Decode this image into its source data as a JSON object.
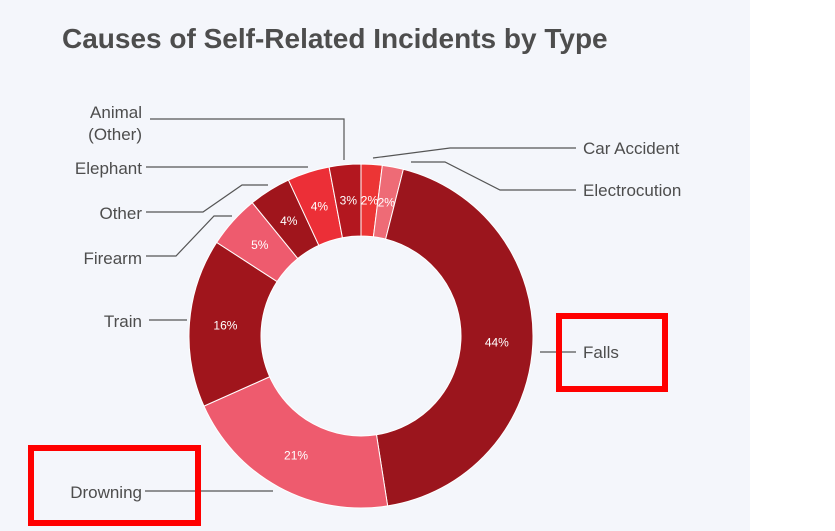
{
  "chart_data": {
    "type": "pie",
    "title": "Causes of Self-Related Incidents by Type",
    "slices": [
      {
        "label": "Car Accident",
        "value": 2,
        "pct_label": "2%",
        "color": "#ec3535"
      },
      {
        "label": "Electrocution",
        "value": 2,
        "pct_label": "2%",
        "color": "#ee6b76"
      },
      {
        "label": "Falls",
        "value": 44,
        "pct_label": "44%",
        "color": "#9b151d"
      },
      {
        "label": "Drowning",
        "value": 21,
        "pct_label": "21%",
        "color": "#ee5b6e"
      },
      {
        "label": "Train",
        "value": 16,
        "pct_label": "16%",
        "color": "#a0151c"
      },
      {
        "label": "Firearm",
        "value": 5,
        "pct_label": "5%",
        "color": "#ee5b6e"
      },
      {
        "label": "Other",
        "value": 4,
        "pct_label": "4%",
        "color": "#a0151c"
      },
      {
        "label": "Elephant",
        "value": 4,
        "pct_label": "4%",
        "color": "#ec2f37"
      },
      {
        "label": "Animal\n(Other)",
        "value": 3,
        "pct_label": "3%",
        "color": "#b3171f"
      }
    ],
    "highlighted": [
      "Falls",
      "Drowning"
    ]
  },
  "colors": {
    "background": "#f4f6fb",
    "title": "#4d4d4d",
    "label": "#4d4d4d",
    "leader_line": "#555555",
    "highlight_box": "#ff0000"
  }
}
